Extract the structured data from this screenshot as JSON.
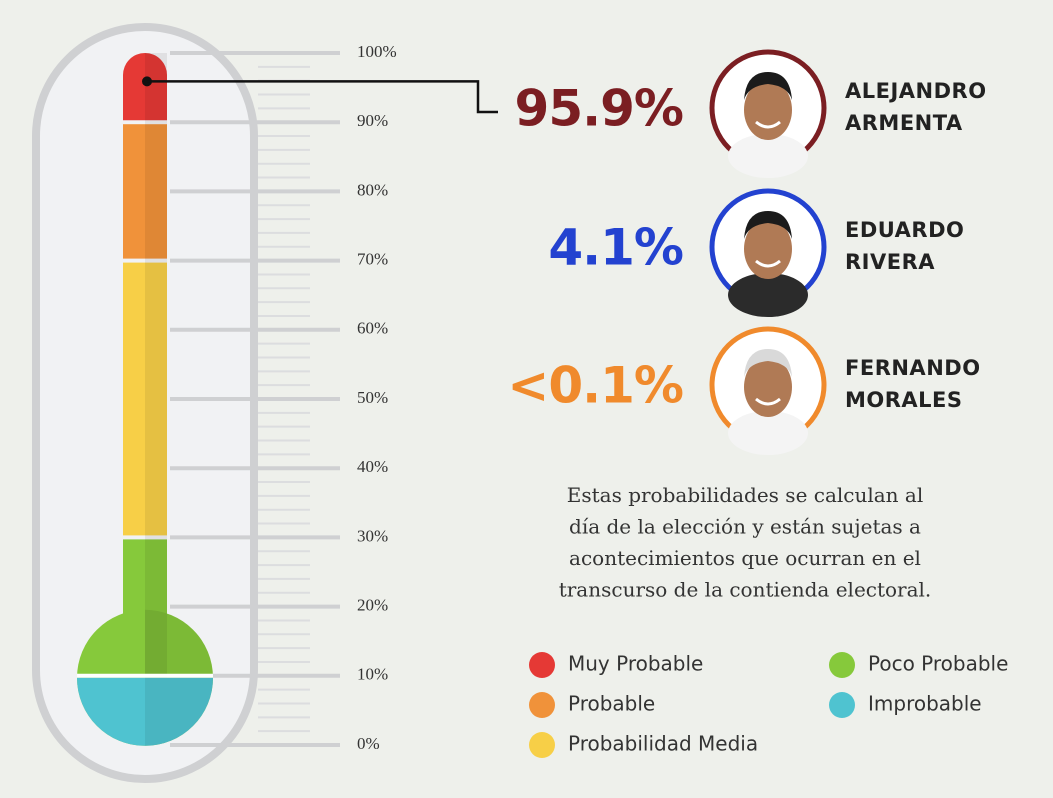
{
  "chart_data": {
    "type": "gauge",
    "ylim": [
      0,
      100
    ],
    "yticks": [
      {
        "value": 0,
        "label": "0%"
      },
      {
        "value": 10,
        "label": "10%"
      },
      {
        "value": 20,
        "label": "20%"
      },
      {
        "value": 30,
        "label": "30%"
      },
      {
        "value": 40,
        "label": "40%"
      },
      {
        "value": 50,
        "label": "50%"
      },
      {
        "value": 60,
        "label": "60%"
      },
      {
        "value": 70,
        "label": "70%"
      },
      {
        "value": 80,
        "label": "80%"
      },
      {
        "value": 90,
        "label": "90%"
      },
      {
        "value": 100,
        "label": "100%"
      }
    ],
    "bands": [
      {
        "name": "Muy Probable",
        "color": "#e53935",
        "from": 90,
        "to": 100
      },
      {
        "name": "Probable",
        "color": "#f0923a",
        "from": 70,
        "to": 90
      },
      {
        "name": "Probabilidad Media",
        "color": "#f7cf47",
        "from": 30,
        "to": 70
      },
      {
        "name": "Poco Probable",
        "color": "#86c93b",
        "from": 10,
        "to": 30
      },
      {
        "name": "Improbable",
        "color": "#4fc3d0",
        "from": 0,
        "to": 10
      }
    ],
    "series": [
      {
        "name": [
          "ALEJANDRO",
          "ARMENTA"
        ],
        "color": "#7b1e22",
        "values": [
          95.9
        ],
        "value_labels": [
          "95.9%"
        ]
      },
      {
        "name": [
          "EDUARDO",
          "RIVERA"
        ],
        "color": "#2342d0",
        "values": [
          4.1
        ],
        "value_labels": [
          "4.1%"
        ]
      },
      {
        "name": [
          "FERNANDO",
          "MORALES"
        ],
        "color": "#f08a2c",
        "values": [
          0.1
        ],
        "value_labels": [
          "<0.1%"
        ]
      }
    ],
    "note": [
      "Estas probabilidades se calculan al",
      "día de la elección y están sujetas a",
      "acontecimientos que ocurran en el",
      "transcurso de la contienda electoral."
    ]
  }
}
